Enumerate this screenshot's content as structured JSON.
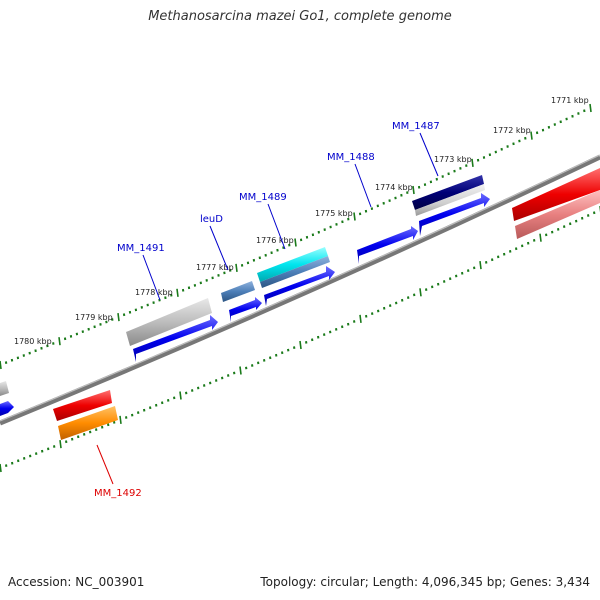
{
  "title": "Methanosarcina mazei Go1, complete genome",
  "footer": {
    "accession": "Accession: NC_003901",
    "summary": "Topology: circular; Length: 4,096,345 bp; Genes: 3,434"
  },
  "colors": {
    "backbone": "#777777",
    "tick": "#1a7a1a",
    "label_blue": "#0000cc",
    "label_red": "#dd0000",
    "gene_blue": "#0000ee",
    "gene_gray": "#bbbbbb",
    "gene_cyan": "#00e5ee",
    "gene_steel": "#4d7fb8",
    "gene_navy": "#000077",
    "gene_red": "#ee0000",
    "gene_pink": "#e88080",
    "gene_orange": "#ff8c00"
  },
  "scale_labels": [
    "1771 kbp",
    "1772 kbp",
    "1773 kbp",
    "1774 kbp",
    "1775 kbp",
    "1776 kbp",
    "1777 kbp",
    "1778 kbp",
    "1779 kbp",
    "1780 kbp"
  ],
  "gene_labels": [
    {
      "text": "MM_1487",
      "color": "blue"
    },
    {
      "text": "MM_1488",
      "color": "blue"
    },
    {
      "text": "MM_1489",
      "color": "blue"
    },
    {
      "text": "leuD",
      "color": "blue"
    },
    {
      "text": "MM_1491",
      "color": "blue"
    },
    {
      "text": "MM_1492",
      "color": "red"
    }
  ]
}
